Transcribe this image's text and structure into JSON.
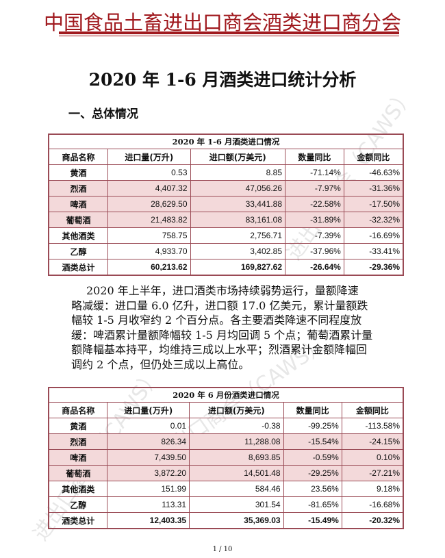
{
  "header": {
    "org": "中国食品土畜进出口商会酒类进口商分会",
    "accent": "#a0191e"
  },
  "title": "2020 年 1-6 月酒类进口统计分析",
  "section": "一、总体情况",
  "watermark": "进出口商会（CAWS）",
  "columns": [
    "商品名称",
    "进口量(万升)",
    "进口额(万美元)",
    "数量同比",
    "金额同比"
  ],
  "table1": {
    "caption": "2020 年 1-6 月酒类进口情况",
    "rows": [
      [
        "黄酒",
        "0.53",
        "8.85",
        "-71.14%",
        "-46.63%"
      ],
      [
        "烈酒",
        "4,407.32",
        "47,056.26",
        "-7.97%",
        "-31.36%"
      ],
      [
        "啤酒",
        "28,629.50",
        "33,441.88",
        "-22.58%",
        "-17.50%"
      ],
      [
        "葡萄酒",
        "21,483.82",
        "83,161.08",
        "-31.89%",
        "-32.32%"
      ],
      [
        "其他酒类",
        "758.75",
        "2,756.71",
        "-7.39%",
        "-16.69%"
      ],
      [
        "乙醇",
        "4,933.70",
        "3,402.85",
        "-37.96%",
        "-33.41%"
      ],
      [
        "酒类总计",
        "60,213.62",
        "169,827.62",
        "-26.64%",
        "-29.36%"
      ]
    ]
  },
  "paragraph": [
    "2020 年上半年，进口酒类市场持续弱势运行，量额降速",
    "略减缓：进口量 6.0 亿升，进口额 17.0 亿美元，累计量额跌",
    "幅较 1-5 月收窄约 2 个百分点。各主要酒类降速不同程度放",
    "缓：啤酒累计量额降幅较 1-5 月均回调 5 个点；葡萄酒累计量",
    "额降幅基本持平，均维持三成以上水平；烈酒累计金额降幅回",
    "调约 2 个点，但仍处三成以上高位。"
  ],
  "table2": {
    "caption": "2020 年 6 月份酒类进口情况",
    "rows": [
      [
        "黄酒",
        "0.01",
        "-0.38",
        "-99.25%",
        "-113.58%"
      ],
      [
        "烈酒",
        "826.34",
        "11,288.08",
        "-15.54%",
        "-24.15%"
      ],
      [
        "啤酒",
        "7,439.50",
        "8,693.85",
        "-0.59%",
        "0.10%"
      ],
      [
        "葡萄酒",
        "3,872.20",
        "14,501.48",
        "-29.25%",
        "-27.21%"
      ],
      [
        "其他酒类",
        "151.99",
        "584.46",
        "23.56%",
        "9.18%"
      ],
      [
        "乙醇",
        "113.31",
        "301.54",
        "-81.65%",
        "-16.68%"
      ],
      [
        "酒类总计",
        "12,403.35",
        "35,369.03",
        "-15.49%",
        "-20.32%"
      ]
    ]
  },
  "page_number": "1 / 10"
}
